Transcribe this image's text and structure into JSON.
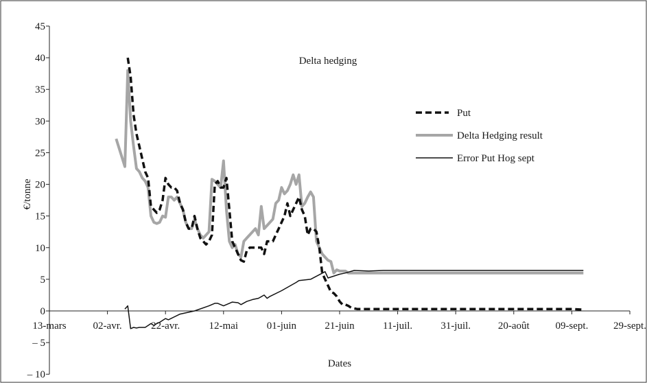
{
  "chart_data": {
    "type": "line",
    "title": "Delta hedging",
    "xlabel": "Dates",
    "ylabel": "€/tonne",
    "ylim": [
      -10,
      45
    ],
    "yticks": [
      -10,
      -5,
      0,
      5,
      10,
      15,
      20,
      25,
      30,
      35,
      40,
      45
    ],
    "ytick_labels": [
      "– 10",
      "– 5",
      "0",
      "5",
      "10",
      "15",
      "20",
      "25",
      "30",
      "35",
      "40",
      "45"
    ],
    "xlim": [
      0,
      200
    ],
    "xticks": [
      0,
      20,
      40,
      60,
      80,
      100,
      120,
      140,
      160,
      180,
      200
    ],
    "xtick_labels": [
      "13-mars",
      "02-avr.",
      "22-avr.",
      "12-mai",
      "01-juin",
      "21-juin",
      "11-juil.",
      "31-juil.",
      "20-août",
      "09-sept.",
      "29-sept."
    ],
    "legend_position": "right",
    "grid": false,
    "series": [
      {
        "name": "Put",
        "style": "dashed",
        "color": "#111111",
        "x": [
          27,
          28,
          29,
          30,
          32,
          33,
          34,
          35,
          36,
          37,
          38,
          39,
          40,
          41,
          42,
          43,
          44,
          45,
          46,
          47,
          48,
          49,
          50,
          51,
          52,
          53,
          54,
          55,
          56,
          57,
          58,
          59,
          60,
          61,
          62,
          63,
          64,
          65,
          66,
          67,
          68,
          69,
          70,
          71,
          72,
          73,
          74,
          75,
          76,
          77,
          78,
          79,
          80,
          81,
          82,
          83,
          84,
          85,
          86,
          87,
          88,
          89,
          90,
          91,
          92,
          93,
          94,
          95,
          96,
          97,
          98,
          99,
          100,
          101,
          102,
          103,
          104,
          105,
          106,
          107,
          108,
          109,
          110,
          111,
          112,
          113,
          114,
          115,
          116,
          117,
          118,
          119,
          120,
          121,
          125,
          130,
          140,
          150,
          160,
          170,
          180,
          184
        ],
        "y": [
          40,
          37,
          31,
          28,
          24,
          22,
          21,
          16.5,
          16,
          15.5,
          16,
          17.5,
          21,
          20,
          19.5,
          19.5,
          19,
          17,
          16,
          14,
          13,
          13,
          15,
          13,
          11.5,
          11,
          10.5,
          11,
          12,
          20,
          20.5,
          19.5,
          19.5,
          21,
          16,
          11,
          10,
          9,
          8,
          7.8,
          9.5,
          10,
          10,
          10,
          10,
          10,
          9,
          11,
          11,
          11,
          12,
          13,
          14,
          15,
          17,
          15,
          16,
          17,
          18,
          16,
          15,
          12,
          13,
          13,
          12.5,
          10,
          6,
          5,
          4,
          3,
          2.8,
          2.3,
          1.5,
          1,
          1,
          0.8,
          0.5,
          0.4,
          0.3,
          0.3,
          0.3,
          0.3,
          0.3,
          0.3,
          0.3,
          0.3,
          0.3,
          0.3,
          0.3,
          0.3,
          0.3,
          0.3,
          0.3,
          0.3,
          0.3,
          0.3,
          0.3,
          0.3,
          0.3,
          0.3,
          0.3,
          0.2
        ]
      },
      {
        "name": "Delta Hedging result",
        "style": "solid-thick",
        "color": "#a6a6a6",
        "x": [
          23,
          26,
          27,
          28,
          29,
          30,
          31,
          32,
          33,
          34,
          35,
          36,
          37,
          38,
          39,
          40,
          41,
          42,
          43,
          44,
          45,
          46,
          47,
          48,
          49,
          50,
          51,
          52,
          53,
          54,
          55,
          56,
          57,
          58,
          59,
          60,
          61,
          62,
          63,
          64,
          65,
          66,
          67,
          68,
          69,
          70,
          71,
          72,
          73,
          74,
          75,
          76,
          77,
          78,
          79,
          80,
          81,
          82,
          83,
          84,
          85,
          86,
          87,
          88,
          89,
          90,
          91,
          92,
          93,
          94,
          95,
          96,
          97,
          98,
          99,
          100,
          101,
          102,
          103,
          104,
          105,
          106,
          107,
          108,
          109,
          110,
          111,
          112,
          113,
          114,
          115,
          116,
          120,
          130,
          140,
          150,
          160,
          170,
          180,
          184
        ],
        "y": [
          27.2,
          22.8,
          38,
          30,
          26,
          22.5,
          22,
          21,
          20.5,
          19.5,
          15,
          14,
          13.8,
          14,
          15,
          14.8,
          18,
          18,
          17.5,
          18,
          17,
          16,
          14,
          13,
          13,
          14.5,
          13,
          12,
          11.5,
          12,
          12.5,
          20.8,
          20.5,
          20,
          19.5,
          23.7,
          16,
          11,
          10,
          10.5,
          9,
          8.5,
          11,
          11.5,
          12,
          12.5,
          13,
          12,
          16.5,
          13,
          13.5,
          14,
          14.5,
          17,
          17.5,
          19.5,
          18.5,
          19,
          20,
          21.5,
          20,
          21.5,
          16.5,
          17,
          18,
          18.8,
          18,
          11,
          10,
          9,
          8.5,
          8,
          7.8,
          6,
          6.5,
          6.3,
          6.3,
          6.3,
          6,
          6,
          6,
          6,
          6,
          6,
          6,
          6,
          6,
          6,
          6,
          6,
          6,
          6,
          6,
          6,
          6,
          6,
          6,
          6,
          6,
          6
        ]
      },
      {
        "name": "Error Put Hog sept",
        "style": "solid-thin",
        "color": "#111111",
        "x": [
          26,
          27,
          28,
          29,
          30,
          31,
          32,
          33,
          34,
          35,
          36,
          37,
          38,
          39,
          40,
          41,
          45,
          50,
          55,
          57,
          58,
          60,
          62,
          63,
          65,
          66,
          68,
          70,
          72,
          74,
          75,
          76,
          80,
          85,
          86,
          90,
          95,
          96,
          100,
          102,
          105,
          110,
          115,
          184
        ],
        "y": [
          0.3,
          0.8,
          -2.8,
          -2.6,
          -2.7,
          -2.6,
          -2.6,
          -2.6,
          -2.3,
          -2.0,
          -2.3,
          -2.0,
          -1.8,
          -1.5,
          -1.2,
          -1.4,
          -0.5,
          0.0,
          0.8,
          1.2,
          1.2,
          0.8,
          1.2,
          1.4,
          1.3,
          1.0,
          1.5,
          1.8,
          2.0,
          2.5,
          2.0,
          2.3,
          3.2,
          4.5,
          4.8,
          5.0,
          6.2,
          5.2,
          5.8,
          6.0,
          6.4,
          6.3,
          6.4,
          6.4
        ]
      }
    ]
  }
}
